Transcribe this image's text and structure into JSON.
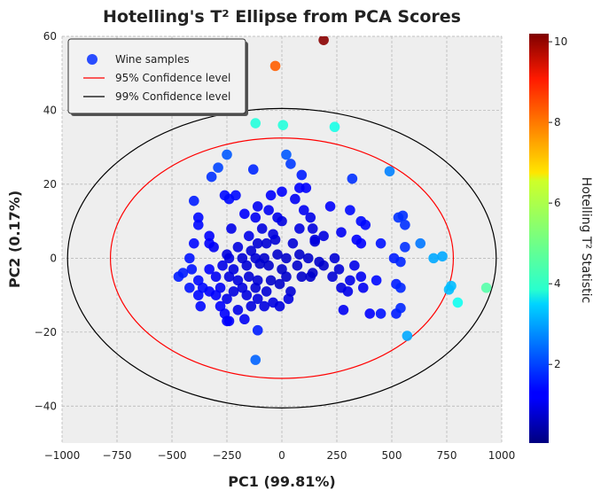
{
  "chart_data": {
    "type": "scatter",
    "title": "Hotelling's T² Ellipse from PCA Scores",
    "xlabel": "PC1 (99.81%)",
    "ylabel": "PC2 (0.17%)",
    "xlim": [
      -1000,
      1000
    ],
    "ylim": [
      -50,
      60
    ],
    "x_ticks": [
      "−1000",
      "−750",
      "−500",
      "−250",
      "0",
      "250",
      "500",
      "750",
      "1000"
    ],
    "y_ticks": [
      "−40",
      "−20",
      "0",
      "20",
      "40",
      "60"
    ],
    "grid": true,
    "legend_position": "top-left",
    "legend": [
      {
        "label": "Wine samples",
        "kind": "marker",
        "color": "#2a4dff"
      },
      {
        "label": "95% Confidence level",
        "kind": "line",
        "color": "#ff0000"
      },
      {
        "label": "99% Confidence level",
        "kind": "line",
        "color": "#000000"
      }
    ],
    "ellipses": [
      {
        "name": "95% Confidence level",
        "color": "#ff0000",
        "rx": 780,
        "ry": 32.5
      },
      {
        "name": "99% Confidence level",
        "color": "#000000",
        "rx": 975,
        "ry": 40.5
      }
    ],
    "colorbar": {
      "label": "Hotelling T² Statistic",
      "min": 0.05,
      "max": 10.2,
      "ticks": [
        2,
        4,
        6,
        8,
        10
      ],
      "colormap": "jet"
    },
    "series": [
      {
        "name": "Wine samples",
        "points": [
          [
            190,
            59,
            10.1
          ],
          [
            -30,
            52,
            8.0
          ],
          [
            -120,
            36.5,
            4.2
          ],
          [
            5,
            36,
            4.2
          ],
          [
            240,
            35.5,
            4.1
          ],
          [
            930,
            -8,
            4.7
          ],
          [
            800,
            -12,
            4.0
          ],
          [
            690,
            0,
            3.0
          ],
          [
            730,
            0.5,
            3.0
          ],
          [
            770,
            -7.5,
            3.2
          ],
          [
            760,
            -8.5,
            3.2
          ],
          [
            570,
            -21,
            3.0
          ],
          [
            490,
            23.5,
            2.6
          ],
          [
            630,
            4,
            2.5
          ],
          [
            -120,
            -27.5,
            2.3
          ],
          [
            -250,
            28,
            2.2
          ],
          [
            20,
            28,
            2.2
          ],
          [
            -290,
            24.5,
            2.0
          ],
          [
            40,
            25.5,
            1.9
          ],
          [
            -110,
            -19.5,
            1.6
          ],
          [
            -320,
            22,
            1.8
          ],
          [
            -130,
            24,
            1.7
          ],
          [
            320,
            21.5,
            1.8
          ],
          [
            90,
            22.5,
            1.6
          ],
          [
            -400,
            15.5,
            1.6
          ],
          [
            -260,
            17,
            1.4
          ],
          [
            -240,
            16,
            1.4
          ],
          [
            -210,
            17,
            1.4
          ],
          [
            -50,
            17,
            1.3
          ],
          [
            0,
            18,
            1.3
          ],
          [
            80,
            19,
            1.3
          ],
          [
            110,
            19,
            1.3
          ],
          [
            60,
            16,
            1.2
          ],
          [
            -110,
            14,
            1.2
          ],
          [
            -380,
            11,
            1.4
          ],
          [
            -380,
            9,
            1.4
          ],
          [
            -170,
            12,
            1.3
          ],
          [
            -120,
            11,
            1.2
          ],
          [
            -60,
            13,
            1.2
          ],
          [
            -20,
            11,
            1.1
          ],
          [
            100,
            13,
            1.2
          ],
          [
            130,
            11,
            1.1
          ],
          [
            220,
            14,
            1.3
          ],
          [
            310,
            13,
            1.4
          ],
          [
            360,
            10,
            1.4
          ],
          [
            380,
            9,
            1.4
          ],
          [
            530,
            11,
            1.8
          ],
          [
            550,
            11.5,
            1.8
          ],
          [
            560,
            9,
            1.8
          ],
          [
            -330,
            6,
            1.3
          ],
          [
            -230,
            8,
            1.1
          ],
          [
            -150,
            6,
            1.1
          ],
          [
            -90,
            8,
            1.0
          ],
          [
            -40,
            6.5,
            1.0
          ],
          [
            0,
            10,
            1.0
          ],
          [
            80,
            8,
            1.0
          ],
          [
            140,
            8,
            1.0
          ],
          [
            150,
            5,
            1.0
          ],
          [
            190,
            6,
            1.0
          ],
          [
            270,
            7,
            1.2
          ],
          [
            340,
            5,
            1.3
          ],
          [
            360,
            4,
            1.3
          ],
          [
            450,
            4,
            1.5
          ],
          [
            560,
            3,
            1.8
          ],
          [
            -400,
            4,
            1.4
          ],
          [
            -330,
            4,
            1.3
          ],
          [
            -310,
            3,
            1.2
          ],
          [
            -200,
            3,
            1.0
          ],
          [
            -140,
            2,
            0.9
          ],
          [
            -110,
            4,
            0.9
          ],
          [
            -70,
            4,
            0.9
          ],
          [
            -30,
            5,
            0.9
          ],
          [
            50,
            4,
            0.9
          ],
          [
            150,
            4.5,
            0.9
          ],
          [
            -420,
            0,
            1.5
          ],
          [
            -250,
            1,
            1.0
          ],
          [
            -240,
            0,
            1.0
          ],
          [
            -180,
            0,
            0.9
          ],
          [
            -120,
            0,
            0.9
          ],
          [
            -80,
            0,
            0.8
          ],
          [
            -20,
            1,
            0.8
          ],
          [
            20,
            0,
            0.8
          ],
          [
            80,
            1,
            0.8
          ],
          [
            120,
            0,
            0.8
          ],
          [
            170,
            -1,
            0.8
          ],
          [
            240,
            0,
            0.9
          ],
          [
            510,
            0,
            1.6
          ],
          [
            540,
            -1,
            1.7
          ],
          [
            -450,
            -4,
            1.6
          ],
          [
            -410,
            -3,
            1.5
          ],
          [
            -330,
            -3,
            1.3
          ],
          [
            -270,
            -2,
            1.1
          ],
          [
            -220,
            -3,
            1.0
          ],
          [
            -160,
            -2,
            0.9
          ],
          [
            -100,
            -1.5,
            0.8
          ],
          [
            -60,
            -2,
            0.8
          ],
          [
            0,
            -3,
            0.8
          ],
          [
            70,
            -2,
            0.8
          ],
          [
            140,
            -4,
            0.8
          ],
          [
            190,
            -2,
            0.8
          ],
          [
            260,
            -3,
            0.9
          ],
          [
            330,
            -2,
            1.1
          ],
          [
            -470,
            -5,
            1.6
          ],
          [
            -380,
            -6,
            1.4
          ],
          [
            -300,
            -5,
            1.2
          ],
          [
            -240,
            -5,
            1.0
          ],
          [
            -200,
            -6,
            1.0
          ],
          [
            -150,
            -5,
            0.9
          ],
          [
            -110,
            -6,
            0.9
          ],
          [
            -50,
            -6,
            0.8
          ],
          [
            20,
            -5,
            0.8
          ],
          [
            90,
            -5,
            0.8
          ],
          [
            130,
            -5,
            0.8
          ],
          [
            230,
            -5,
            0.9
          ],
          [
            310,
            -6,
            1.1
          ],
          [
            360,
            -5,
            1.2
          ],
          [
            430,
            -6,
            1.4
          ],
          [
            -420,
            -8,
            1.5
          ],
          [
            -360,
            -8,
            1.4
          ],
          [
            -330,
            -9,
            1.3
          ],
          [
            -280,
            -8,
            1.2
          ],
          [
            -220,
            -9,
            1.0
          ],
          [
            -180,
            -8,
            1.0
          ],
          [
            -120,
            -8,
            0.9
          ],
          [
            -70,
            -9,
            0.9
          ],
          [
            -10,
            -7,
            0.8
          ],
          [
            40,
            -9,
            0.9
          ],
          [
            270,
            -8,
            1.0
          ],
          [
            300,
            -9,
            1.1
          ],
          [
            370,
            -8,
            1.2
          ],
          [
            520,
            -7,
            1.6
          ],
          [
            540,
            -8,
            1.7
          ],
          [
            -380,
            -10,
            1.4
          ],
          [
            -300,
            -10,
            1.3
          ],
          [
            -250,
            -11,
            1.1
          ],
          [
            -160,
            -10,
            1.0
          ],
          [
            -110,
            -11,
            1.0
          ],
          [
            -40,
            -12,
            1.0
          ],
          [
            30,
            -11,
            1.0
          ],
          [
            -370,
            -13,
            1.4
          ],
          [
            -280,
            -13,
            1.3
          ],
          [
            -200,
            -14,
            1.1
          ],
          [
            -140,
            -13,
            1.0
          ],
          [
            -80,
            -13,
            1.0
          ],
          [
            -10,
            -13,
            1.0
          ],
          [
            280,
            -14,
            1.2
          ],
          [
            400,
            -15,
            1.3
          ],
          [
            450,
            -15,
            1.5
          ],
          [
            520,
            -15,
            1.6
          ],
          [
            540,
            -13.5,
            1.7
          ],
          [
            -260,
            -15,
            1.3
          ],
          [
            -250,
            -17,
            1.3
          ],
          [
            -170,
            -16.5,
            1.2
          ],
          [
            -240,
            -17,
            1.3
          ]
        ]
      }
    ]
  }
}
